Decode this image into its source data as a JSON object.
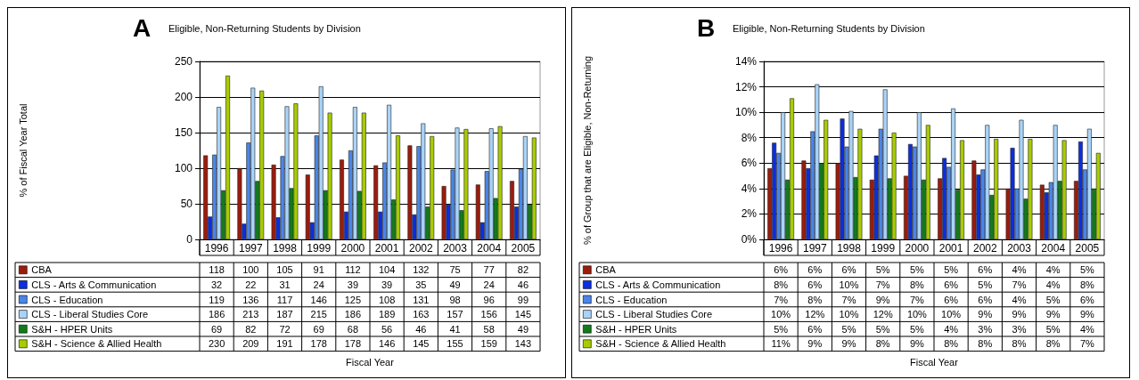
{
  "chart_data": [
    {
      "type": "bar",
      "title": "Eligible, Non-Returning Students by Division",
      "xlabel": "Fiscal Year",
      "ylabel": "% of Fiscal Year Total",
      "annotations": [
        "A"
      ],
      "categories": [
        "1996",
        "1997",
        "1998",
        "1999",
        "2000",
        "2001",
        "2002",
        "2003",
        "2004",
        "2005"
      ],
      "series": [
        {
          "name": "CBA",
          "color": "#9b1c0c",
          "values": [
            118,
            100,
            105,
            91,
            112,
            104,
            132,
            75,
            77,
            82
          ]
        },
        {
          "name": "CLS - Arts & Communication",
          "color": "#0b2ee0",
          "values": [
            32,
            22,
            31,
            24,
            39,
            39,
            35,
            49,
            24,
            46
          ]
        },
        {
          "name": "CLS - Education",
          "color": "#4a86e8",
          "values": [
            119,
            136,
            117,
            146,
            125,
            108,
            131,
            98,
            96,
            99
          ]
        },
        {
          "name": "CLS - Liberal Studies Core",
          "color": "#a9d4f8",
          "values": [
            186,
            213,
            187,
            215,
            186,
            189,
            163,
            157,
            156,
            145
          ]
        },
        {
          "name": "S&H - HPER Units",
          "color": "#137a1c",
          "values": [
            69,
            82,
            72,
            69,
            68,
            56,
            46,
            41,
            58,
            49
          ]
        },
        {
          "name": "S&H - Science & Allied Health",
          "color": "#a8cc00",
          "values": [
            230,
            209,
            191,
            178,
            178,
            146,
            145,
            155,
            159,
            143
          ]
        }
      ],
      "ylim": [
        0,
        250
      ],
      "yticks": [
        0,
        50,
        100,
        150,
        200,
        250
      ],
      "grid": "y",
      "legend": "bottom left",
      "data_labels": true
    },
    {
      "type": "bar",
      "title": "Eligible, Non-Returning Students by Division",
      "xlabel": "Fiscal Year",
      "ylabel": "% of Group that are Eligible, Non-Returning",
      "annotations": [
        "B"
      ],
      "categories": [
        "1996",
        "1997",
        "1998",
        "1999",
        "2000",
        "2001",
        "2002",
        "2003",
        "2004",
        "2005"
      ],
      "series": [
        {
          "name": "CBA",
          "color": "#9b1c0c",
          "values": [
            5.6,
            6.2,
            6.0,
            4.7,
            5.0,
            4.8,
            6.2,
            4.0,
            4.3,
            4.6
          ],
          "value_labels": [
            "6%",
            "6%",
            "6%",
            "5%",
            "5%",
            "5%",
            "6%",
            "4%",
            "4%",
            "5%"
          ]
        },
        {
          "name": "CLS - Arts & Communication",
          "color": "#0b2ee0",
          "values": [
            7.6,
            5.6,
            9.5,
            6.6,
            7.5,
            6.4,
            5.1,
            7.2,
            3.7,
            7.7
          ],
          "value_labels": [
            "8%",
            "6%",
            "10%",
            "7%",
            "8%",
            "6%",
            "5%",
            "7%",
            "4%",
            "8%"
          ]
        },
        {
          "name": "CLS - Education",
          "color": "#4a86e8",
          "values": [
            6.8,
            8.5,
            7.3,
            8.7,
            7.3,
            5.7,
            5.5,
            4.0,
            4.5,
            5.5
          ],
          "value_labels": [
            "7%",
            "8%",
            "7%",
            "9%",
            "7%",
            "6%",
            "6%",
            "4%",
            "5%",
            "6%"
          ]
        },
        {
          "name": "CLS - Liberal Studies Core",
          "color": "#a9d4f8",
          "values": [
            10.0,
            12.2,
            10.1,
            11.8,
            10.0,
            10.3,
            9.0,
            9.4,
            9.0,
            8.7
          ],
          "value_labels": [
            "10%",
            "12%",
            "10%",
            "12%",
            "10%",
            "10%",
            "9%",
            "9%",
            "9%",
            "9%"
          ]
        },
        {
          "name": "S&H - HPER Units",
          "color": "#137a1c",
          "values": [
            4.7,
            6.0,
            4.9,
            4.8,
            4.7,
            3.9,
            3.5,
            3.2,
            4.6,
            4.0
          ],
          "value_labels": [
            "5%",
            "6%",
            "5%",
            "5%",
            "5%",
            "4%",
            "3%",
            "3%",
            "5%",
            "4%"
          ]
        },
        {
          "name": "S&H - Science & Allied Health",
          "color": "#a8cc00",
          "values": [
            11.1,
            9.4,
            8.7,
            8.4,
            9.0,
            7.8,
            7.9,
            7.9,
            7.8,
            6.8
          ],
          "value_labels": [
            "11%",
            "9%",
            "9%",
            "8%",
            "9%",
            "8%",
            "8%",
            "8%",
            "8%",
            "7%"
          ]
        }
      ],
      "ylim": [
        0,
        14
      ],
      "yticks": [
        {
          "value": 0,
          "label": "0%"
        },
        {
          "value": 2,
          "label": "2%"
        },
        {
          "value": 4,
          "label": "4%"
        },
        {
          "value": 6,
          "label": "6%"
        },
        {
          "value": 8,
          "label": "8%"
        },
        {
          "value": 10,
          "label": "10%"
        },
        {
          "value": 12,
          "label": "12%"
        },
        {
          "value": 14,
          "label": "14%"
        }
      ],
      "grid": "y",
      "legend": "bottom left"
    }
  ]
}
